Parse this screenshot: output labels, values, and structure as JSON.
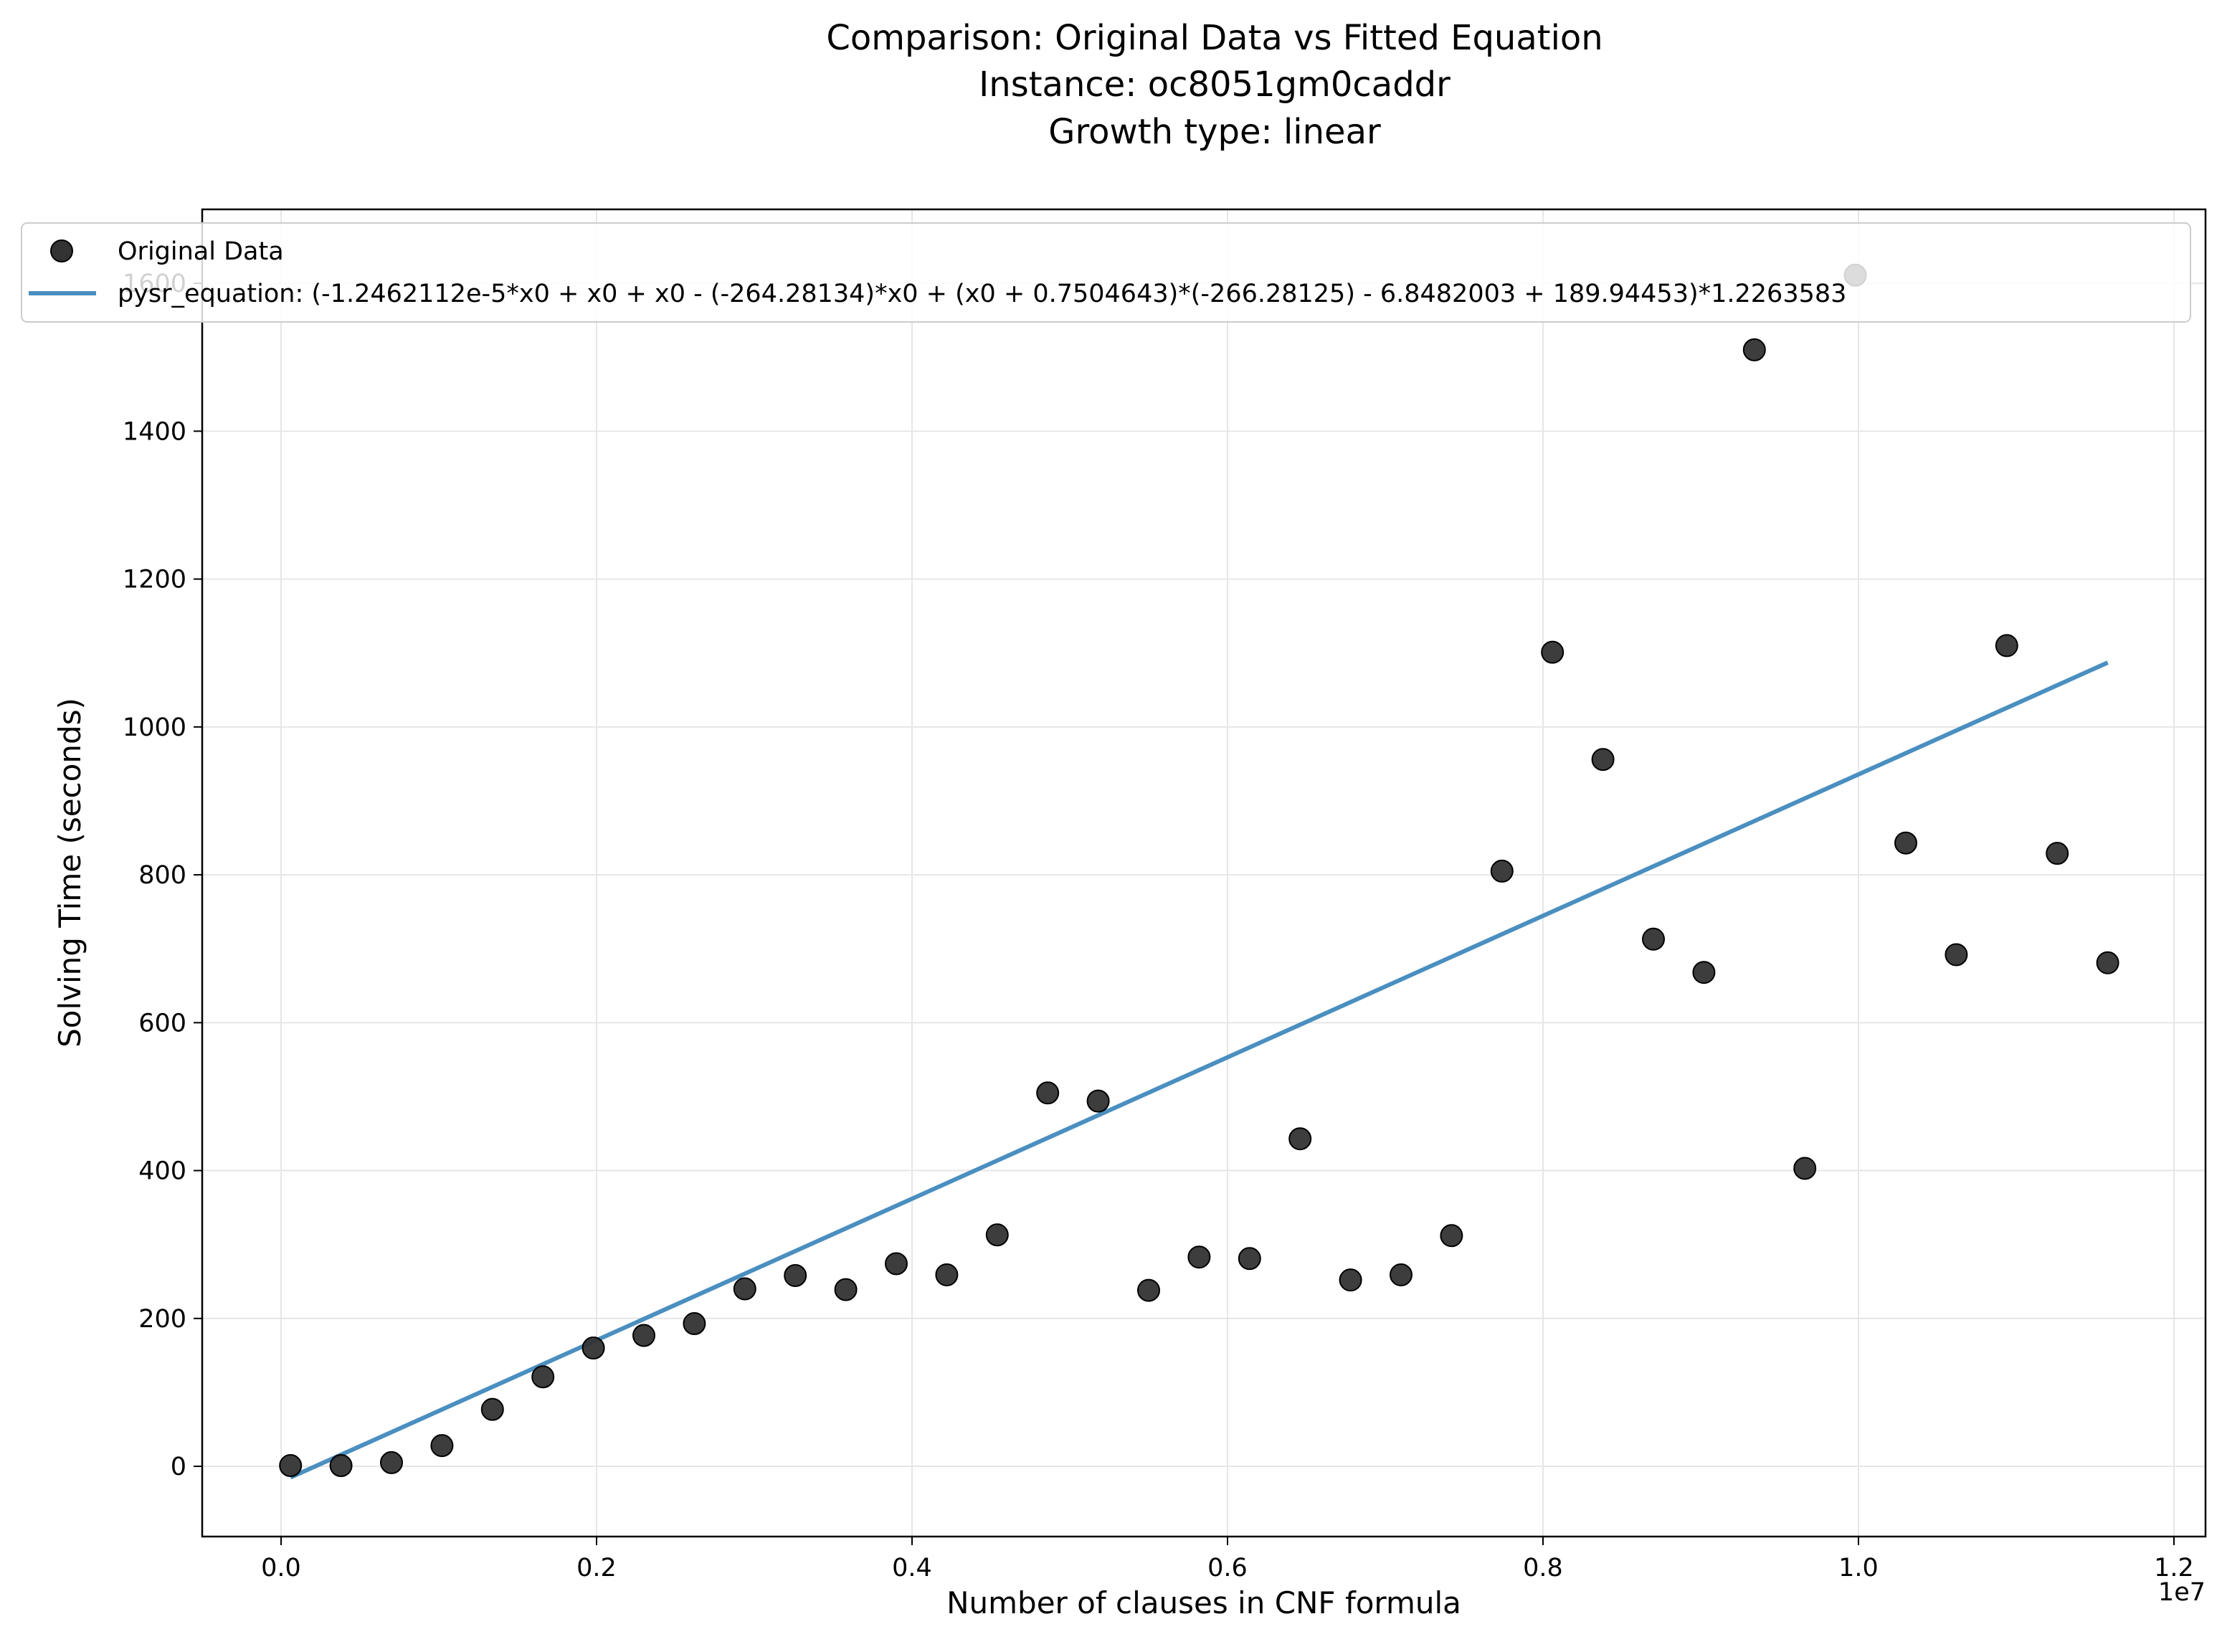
{
  "chart_data": {
    "type": "scatter",
    "title_lines": [
      "Comparison: Original Data vs Fitted Equation",
      "Instance: oc8051gm0caddr",
      "Growth type: linear"
    ],
    "xlabel": "Number of clauses in CNF formula",
    "ylabel": "Solving Time (seconds)",
    "x_offset_label": "1e7",
    "x_scale": 10000000,
    "xlim": [
      -0.05,
      1.22
    ],
    "ylim": [
      -95,
      1700
    ],
    "x_ticks": [
      0.0,
      0.2,
      0.4,
      0.6,
      0.8,
      1.0,
      1.2
    ],
    "x_tick_labels": [
      "0.0",
      "0.2",
      "0.4",
      "0.6",
      "0.8",
      "1.0",
      "1.2"
    ],
    "y_ticks": [
      0,
      200,
      400,
      600,
      800,
      1000,
      1200,
      1400,
      1600
    ],
    "y_tick_labels": [
      "0",
      "200",
      "400",
      "600",
      "800",
      "1000",
      "1200",
      "1400",
      "1600"
    ],
    "grid": true,
    "legend_position": "upper-left",
    "series": [
      {
        "name": "Original Data",
        "kind": "scatter",
        "color": "#333333",
        "x": [
          0.006,
          0.038,
          0.07,
          0.102,
          0.134,
          0.166,
          0.198,
          0.23,
          0.262,
          0.294,
          0.326,
          0.358,
          0.39,
          0.422,
          0.454,
          0.486,
          0.518,
          0.55,
          0.582,
          0.614,
          0.646,
          0.678,
          0.71,
          0.742,
          0.774,
          0.806,
          0.838,
          0.87,
          0.902,
          0.934,
          0.966,
          0.998,
          1.03,
          1.062,
          1.094,
          1.126,
          1.158
        ],
        "y": [
          1,
          1,
          5,
          28,
          77,
          121,
          160,
          177,
          193,
          240,
          258,
          239,
          274,
          259,
          313,
          505,
          494,
          238,
          283,
          281,
          443,
          252,
          259,
          312,
          805,
          1101,
          956,
          713,
          668,
          1510,
          403,
          1611,
          843,
          692,
          1110,
          829,
          681
        ]
      },
      {
        "name": "pysr_equation: (-1.2462112e-5*x0 + x0 + x0 - (-264.28134)*x0 + (x0 + 0.7504643)*(-266.28125) - 6.8482003 + 189.94453)*1.2263583",
        "kind": "line",
        "color": "#4a8fc0",
        "x": [
          0.006,
          1.158
        ],
        "y": [
          -15,
          1087
        ]
      }
    ]
  }
}
